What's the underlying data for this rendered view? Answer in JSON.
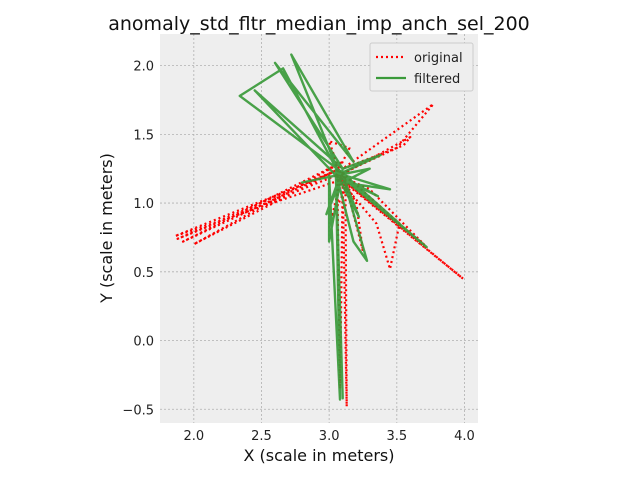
{
  "chart_data": {
    "type": "line",
    "title": "anomaly_std_fltr_median_imp_anch_sel_200",
    "xlabel": "X (scale in meters)",
    "ylabel": "Y (scale in meters)",
    "xlim": [
      1.75,
      4.1
    ],
    "ylim": [
      -0.6,
      2.23
    ],
    "xticks": [
      "2.0",
      "2.5",
      "3.0",
      "3.5",
      "4.0"
    ],
    "xtick_values": [
      2.0,
      2.5,
      3.0,
      3.5,
      4.0
    ],
    "yticks": [
      "−0.5",
      "0.0",
      "0.5",
      "1.0",
      "1.5",
      "2.0"
    ],
    "ytick_values": [
      -0.5,
      0.0,
      0.5,
      1.0,
      1.5,
      2.0
    ],
    "grid": true,
    "legend_position": "top-right",
    "series": [
      {
        "name": "original",
        "color": "#ff0000",
        "style": "dotted",
        "points": [
          [
            3.05,
            1.2
          ],
          [
            1.88,
            0.74
          ],
          [
            3.08,
            1.25
          ],
          [
            1.92,
            0.72
          ],
          [
            3.1,
            1.3
          ],
          [
            2.0,
            0.7
          ],
          [
            3.02,
            1.22
          ],
          [
            1.86,
            0.76
          ],
          [
            3.12,
            1.18
          ],
          [
            3.13,
            -0.48
          ],
          [
            3.1,
            1.15
          ],
          [
            3.08,
            -0.35
          ],
          [
            3.06,
            1.2
          ],
          [
            3.5,
            1.4
          ],
          [
            3.77,
            1.72
          ],
          [
            3.1,
            1.25
          ],
          [
            3.55,
            1.42
          ],
          [
            3.6,
            1.48
          ],
          [
            3.08,
            1.2
          ],
          [
            3.3,
            1.1
          ],
          [
            3.7,
            0.7
          ],
          [
            3.0,
            1.25
          ],
          [
            3.99,
            0.45
          ],
          [
            3.05,
            1.2
          ],
          [
            3.35,
            0.85
          ],
          [
            3.45,
            0.52
          ],
          [
            3.52,
            0.85
          ],
          [
            3.1,
            1.22
          ],
          [
            3.25,
            0.65
          ],
          [
            3.2,
            1.0
          ],
          [
            3.07,
            1.25
          ],
          [
            3.0,
            1.45
          ],
          [
            3.15,
            1.4
          ],
          [
            3.05,
            1.2
          ],
          [
            3.12,
            1.1
          ],
          [
            3.02,
            0.9
          ],
          [
            3.1,
            1.22
          ]
        ]
      },
      {
        "name": "filtered",
        "color": "#3a9a3a",
        "style": "solid",
        "points": [
          [
            3.1,
            1.22
          ],
          [
            2.34,
            1.78
          ],
          [
            2.66,
            1.98
          ],
          [
            3.08,
            1.2
          ],
          [
            2.72,
            2.08
          ],
          [
            3.18,
            1.3
          ],
          [
            2.6,
            2.02
          ],
          [
            3.1,
            1.25
          ],
          [
            2.45,
            1.82
          ],
          [
            3.05,
            1.2
          ],
          [
            2.8,
            1.15
          ],
          [
            3.05,
            1.2
          ],
          [
            3.1,
            -0.42
          ],
          [
            3.05,
            1.25
          ],
          [
            3.08,
            -0.43
          ],
          [
            3.0,
            1.2
          ],
          [
            3.0,
            0.72
          ],
          [
            3.1,
            1.25
          ],
          [
            3.38,
            1.35
          ],
          [
            3.05,
            1.2
          ],
          [
            3.3,
            1.25
          ],
          [
            3.1,
            1.15
          ],
          [
            3.45,
            1.1
          ],
          [
            3.12,
            1.2
          ],
          [
            3.52,
            0.85
          ],
          [
            3.08,
            1.2
          ],
          [
            3.72,
            0.68
          ],
          [
            3.1,
            1.2
          ],
          [
            3.28,
            0.58
          ],
          [
            3.18,
            0.72
          ],
          [
            3.05,
            1.22
          ],
          [
            3.22,
            0.9
          ],
          [
            3.1,
            1.2
          ],
          [
            2.98,
            0.92
          ],
          [
            3.08,
            1.2
          ],
          [
            3.36,
            1.05
          ],
          [
            3.05,
            1.2
          ]
        ]
      }
    ]
  }
}
